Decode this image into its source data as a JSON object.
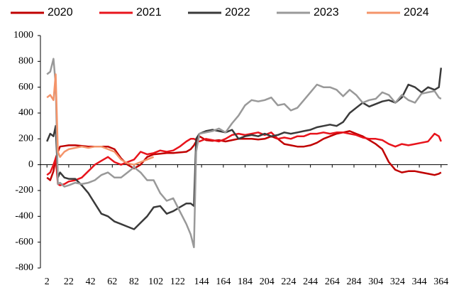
{
  "chart_data": {
    "type": "line",
    "x": [
      2,
      5,
      8,
      10,
      12,
      14,
      18,
      22,
      28,
      34,
      40,
      46,
      52,
      58,
      64,
      70,
      76,
      82,
      88,
      94,
      100,
      106,
      112,
      118,
      124,
      130,
      134,
      137,
      139,
      142,
      148,
      154,
      160,
      166,
      172,
      178,
      184,
      190,
      196,
      202,
      208,
      214,
      220,
      226,
      232,
      238,
      244,
      250,
      256,
      262,
      268,
      274,
      280,
      286,
      292,
      298,
      304,
      310,
      316,
      322,
      328,
      334,
      340,
      346,
      352,
      358,
      362,
      364
    ],
    "series": [
      {
        "name": "2020",
        "color": "#c00000",
        "values": [
          -100,
          -120,
          -50,
          50,
          100,
          140,
          145,
          150,
          150,
          145,
          140,
          140,
          140,
          140,
          120,
          50,
          0,
          -30,
          0,
          60,
          80,
          85,
          90,
          90,
          95,
          100,
          120,
          150,
          180,
          220,
          190,
          185,
          190,
          180,
          190,
          200,
          200,
          200,
          195,
          200,
          220,
          200,
          160,
          150,
          140,
          140,
          150,
          170,
          200,
          220,
          240,
          250,
          260,
          240,
          220,
          190,
          160,
          120,
          20,
          -40,
          -60,
          -50,
          -50,
          -60,
          -70,
          -80,
          -70,
          -60
        ]
      },
      {
        "name": "2021",
        "color": "#e8141c",
        "values": [
          -80,
          -60,
          0,
          50,
          -150,
          -160,
          -150,
          -130,
          -120,
          -100,
          -50,
          0,
          30,
          60,
          20,
          0,
          20,
          40,
          100,
          80,
          90,
          110,
          100,
          110,
          140,
          180,
          200,
          200,
          190,
          180,
          200,
          190,
          180,
          200,
          230,
          240,
          230,
          240,
          250,
          230,
          250,
          200,
          210,
          200,
          220,
          220,
          240,
          240,
          250,
          240,
          250,
          250,
          240,
          230,
          210,
          200,
          200,
          190,
          160,
          140,
          160,
          150,
          160,
          170,
          180,
          240,
          220,
          180
        ]
      },
      {
        "name": "2022",
        "color": "#3a3a3a",
        "values": [
          180,
          240,
          220,
          300,
          -100,
          -60,
          -100,
          -110,
          -110,
          -160,
          -220,
          -300,
          -380,
          -400,
          -440,
          -460,
          -480,
          -500,
          -450,
          -400,
          -330,
          -320,
          -380,
          -360,
          -330,
          -300,
          -300,
          -320,
          200,
          240,
          260,
          270,
          260,
          250,
          270,
          200,
          220,
          230,
          220,
          240,
          220,
          230,
          250,
          240,
          250,
          260,
          270,
          290,
          300,
          310,
          300,
          330,
          400,
          440,
          480,
          450,
          470,
          490,
          500,
          480,
          520,
          620,
          600,
          560,
          600,
          580,
          600,
          750
        ]
      },
      {
        "name": "2023",
        "color": "#999999",
        "values": [
          700,
          720,
          820,
          620,
          -150,
          -140,
          -170,
          -160,
          -140,
          -150,
          -140,
          -120,
          -80,
          -60,
          -100,
          -100,
          -60,
          -20,
          -60,
          -120,
          -120,
          -220,
          -280,
          -260,
          -360,
          -460,
          -540,
          -640,
          100,
          240,
          250,
          260,
          280,
          250,
          320,
          380,
          460,
          500,
          490,
          500,
          520,
          460,
          470,
          420,
          440,
          500,
          560,
          620,
          600,
          600,
          580,
          530,
          580,
          540,
          480,
          500,
          510,
          560,
          540,
          480,
          540,
          500,
          480,
          550,
          560,
          570,
          520,
          510
        ]
      },
      {
        "name": "2024",
        "color": "#f4946a",
        "values": [
          520,
          540,
          500,
          700,
          100,
          60,
          100,
          120,
          130,
          140,
          130,
          140,
          140,
          120,
          100,
          40,
          10,
          0,
          20,
          40,
          60,
          null,
          null,
          null,
          null,
          null,
          null,
          null,
          null,
          null,
          null,
          null,
          null,
          null,
          null,
          null,
          null,
          null,
          null,
          null,
          null,
          null,
          null,
          null,
          null,
          null,
          null,
          null,
          null,
          null,
          null,
          null,
          null,
          null,
          null,
          null,
          null,
          null,
          null,
          null,
          null,
          null,
          null,
          null,
          null,
          null,
          null,
          null
        ]
      }
    ],
    "xlim": [
      -4,
      370
    ],
    "xticks": [
      2,
      22,
      42,
      62,
      82,
      102,
      122,
      144,
      164,
      184,
      204,
      224,
      244,
      264,
      284,
      304,
      324,
      344,
      364
    ],
    "ylim": [
      -800,
      1000
    ],
    "yticks": [
      -800,
      -600,
      -400,
      -200,
      0,
      200,
      400,
      600,
      800,
      1000
    ]
  }
}
